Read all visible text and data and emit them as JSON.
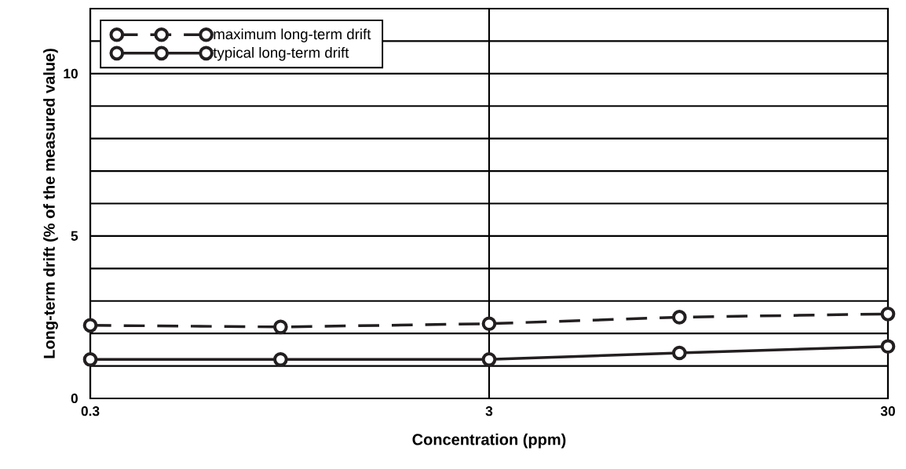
{
  "chart_data": {
    "type": "line",
    "xlabel": "Concentration (ppm)",
    "ylabel": "Long-term drift (% of the measured value)",
    "x": [
      0.3,
      0.9,
      3,
      9,
      30
    ],
    "series": [
      {
        "name": "maximum long-term drift",
        "color": "#231f20",
        "line_style": "dashed",
        "values": [
          2.25,
          2.2,
          2.3,
          2.5,
          2.6
        ]
      },
      {
        "name": "typical long-term drift",
        "color": "#231f20",
        "line_style": "solid",
        "values": [
          1.2,
          1.2,
          1.2,
          1.4,
          1.6
        ]
      }
    ],
    "log": "x",
    "xlim": [
      0.3,
      30
    ],
    "xticks": [
      0.3,
      3,
      30
    ],
    "ylim": [
      0,
      12
    ],
    "yticks": [
      0,
      {
        "value": 1,
        "label": null
      },
      {
        "value": 2,
        "label": null
      },
      {
        "value": 3,
        "label": null
      },
      {
        "value": 4,
        "label": null
      },
      5,
      {
        "value": 6,
        "label": null
      },
      {
        "value": 7,
        "label": null
      },
      {
        "value": 8,
        "label": null
      },
      {
        "value": 9,
        "label": null
      },
      10,
      {
        "value": 11,
        "label": null
      },
      {
        "value": 12,
        "label": null
      }
    ],
    "grid": true,
    "legend": "top left",
    "marker": "circle"
  }
}
